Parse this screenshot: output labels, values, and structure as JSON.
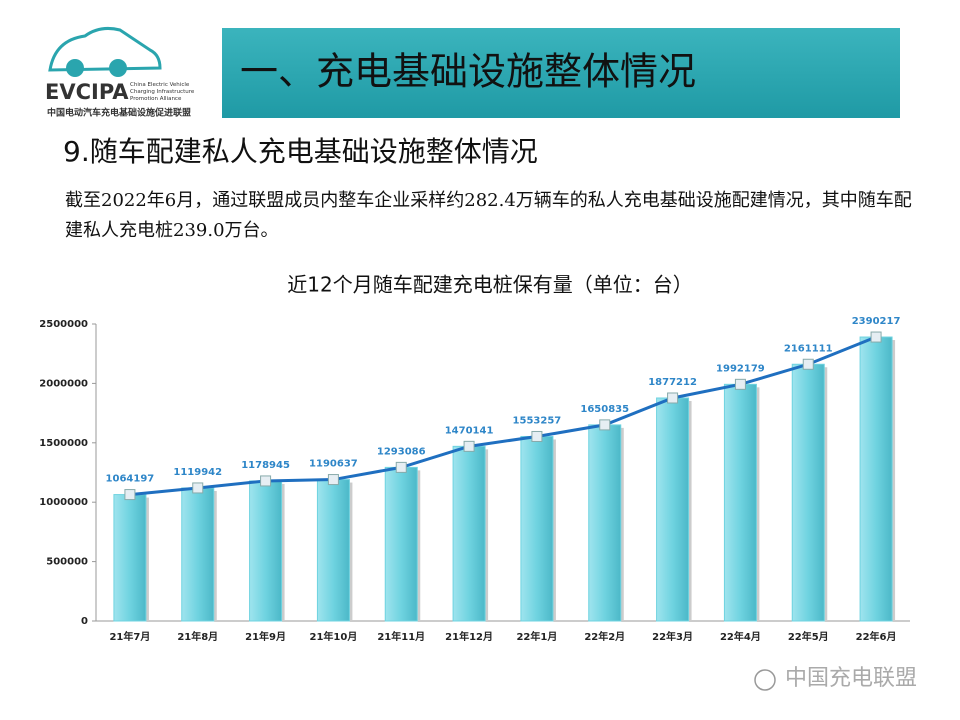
{
  "logo": {
    "abbr": "EVCIPA",
    "english": "China Electric Vehicle Charging Infrastructure Promotion Alliance",
    "chinese": "中国电动汽车充电基础设施促进联盟"
  },
  "header": {
    "title": "一、充电基础设施整体情况"
  },
  "subtitle": "9.随车配建私人充电基础设施整体情况",
  "paragraph": "截至2022年6月，通过联盟成员内整车企业采样约282.4万辆车的私人充电基础设施配建情况，其中随车配建私人充电桩239.0万台。",
  "watermark": "中国充电联盟",
  "chart_data": {
    "type": "bar",
    "line_overlay": true,
    "title": "近12个月随车配建充电桩保有量（单位：台）",
    "categories": [
      "21年7月",
      "21年8月",
      "21年9月",
      "21年10月",
      "21年11月",
      "21年12月",
      "22年1月",
      "22年2月",
      "22年3月",
      "22年4月",
      "22年5月",
      "22年6月"
    ],
    "values": [
      1064197,
      1119942,
      1178945,
      1190637,
      1293086,
      1470141,
      1553257,
      1650835,
      1877212,
      1992179,
      2161111,
      2390217
    ],
    "color": "#6fd3e0",
    "line_color": "#1f6fc0",
    "label_color": "#2e86c8",
    "ylim": [
      0,
      2500000
    ],
    "yticks": [
      0,
      500000,
      1000000,
      1500000,
      2000000,
      2500000
    ],
    "grid": false
  }
}
